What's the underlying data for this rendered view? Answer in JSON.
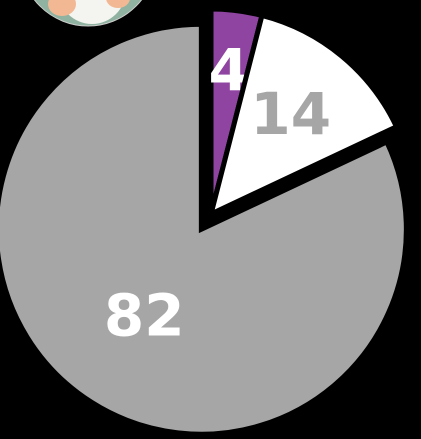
{
  "chart_data": {
    "type": "pie",
    "values": [
      4,
      14,
      82
    ],
    "colors": [
      "#8e44a0",
      "#ffffff",
      "#a6a6a6"
    ],
    "label_colors": [
      "#ffffff",
      "#a6a6a6",
      "#ffffff"
    ]
  }
}
